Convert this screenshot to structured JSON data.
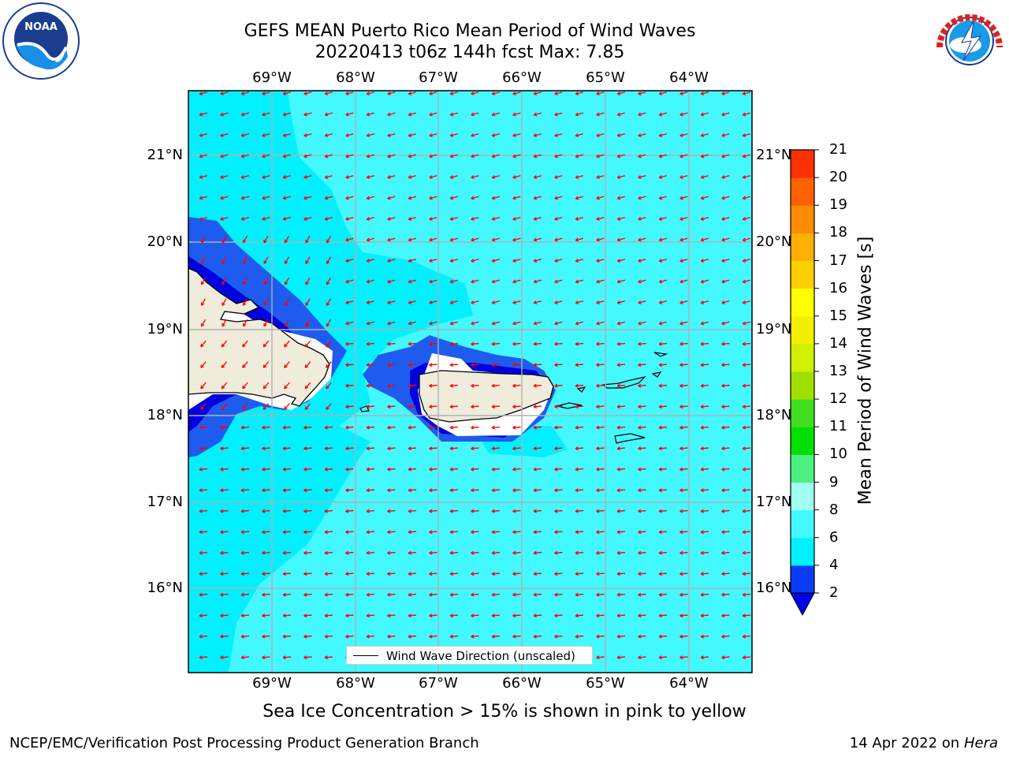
{
  "title_line1": "GEFS MEAN Puerto Rico Mean Period of Wind Waves",
  "title_line2": "20220413 t06z 144h fcst   Max: 7.85",
  "longitude_labels": [
    "69°W",
    "68°W",
    "67°W",
    "66°W",
    "65°W",
    "64°W"
  ],
  "latitude_labels": [
    "21°N",
    "20°N",
    "19°N",
    "18°N",
    "17°N",
    "16°N"
  ],
  "legend_label": "Wind Wave Direction (unscaled)",
  "colorbar": {
    "label": "Mean Period of Wind Waves [s]",
    "ticks": [
      "2",
      "4",
      "6",
      "8",
      "9",
      "10",
      "11",
      "12",
      "13",
      "14",
      "15",
      "16",
      "17",
      "18",
      "19",
      "20",
      "21"
    ],
    "colors": [
      "#0b3cf5",
      "#00f0ff",
      "#44f8ff",
      "#a0fff0",
      "#4cf080",
      "#00e000",
      "#40e020",
      "#a0e000",
      "#d0f000",
      "#f0f000",
      "#ffff00",
      "#ffd000",
      "#ffb000",
      "#ff8c00",
      "#ff6000",
      "#ff3000"
    ],
    "extend_color": "#0000f0"
  },
  "sea_ice_note": "Sea Ice Concentration > 15% is shown in pink to yellow",
  "footer_left": "NCEP/EMC/Verification Post Processing Product Generation Branch",
  "footer_right_date": "14 Apr 2022 on",
  "footer_right_host": "Hera",
  "logos": {
    "left": "noaa-logo",
    "right": "nws-logo"
  },
  "map_colors": {
    "ocean_main": "#00f0ff",
    "ocean_light": "#44f8ff",
    "waves_blue": "#1e5cf0",
    "waves_dark": "#0000e0",
    "land": "#efecdc",
    "arrows": "#ff0000",
    "grid": "#b0b0b0"
  }
}
